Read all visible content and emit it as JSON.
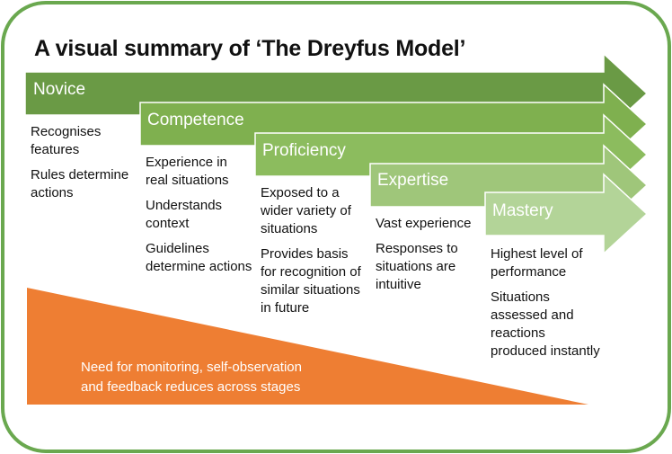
{
  "title": "A visual summary of ‘The Dreyfus Model’",
  "colors": {
    "frame": "#6aa84f",
    "novice": "#6a9a45",
    "competence": "#7fb04f",
    "proficiency": "#8cbc5e",
    "expertise": "#9fc67a",
    "mastery": "#b3d498",
    "triangle": "#ee7e33"
  },
  "stages": [
    {
      "name": "Novice",
      "points": [
        "Recognises features",
        "Rules determine actions"
      ]
    },
    {
      "name": "Competence",
      "points": [
        "Experience in real situations",
        "Understands context",
        "Guidelines determine actions"
      ]
    },
    {
      "name": "Proficiency",
      "points": [
        "Exposed to a wider variety of situations",
        "Provides basis for recognition of similar situations in future"
      ]
    },
    {
      "name": "Expertise",
      "points": [
        "Vast experience",
        "Responses to situations are intuitive"
      ]
    },
    {
      "name": "Mastery",
      "points": [
        "Highest level of performance",
        "Situations assessed and reactions produced instantly"
      ]
    }
  ],
  "triangle_text": {
    "line1": "Need for monitoring, self-observation",
    "line2": "and feedback reduces across stages"
  }
}
